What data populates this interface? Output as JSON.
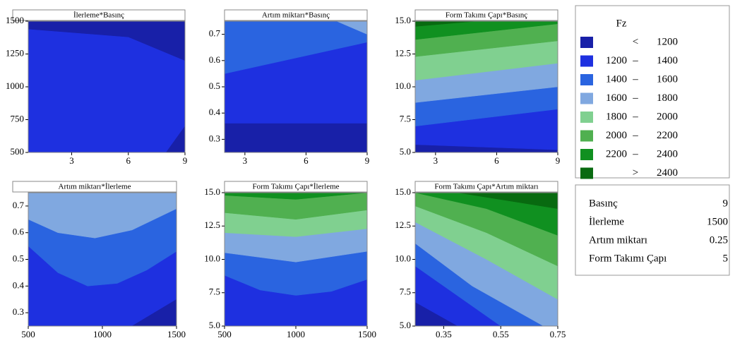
{
  "chart_data": {
    "type": "contour",
    "legend": {
      "title": "Fz",
      "less": "<",
      "dash": "–",
      "greater": ">",
      "breaks": [
        1200,
        1400,
        1600,
        1800,
        2000,
        2200,
        2400
      ],
      "colors": [
        "#1820a8",
        "#1e30e0",
        "#2a64e0",
        "#80a8e0",
        "#80d090",
        "#50b050",
        "#109020",
        "#086a10"
      ]
    },
    "hold": [
      {
        "name": "Basınç",
        "value": 9
      },
      {
        "name": "İlerleme",
        "value": 1500
      },
      {
        "name": "Artım miktarı",
        "value": 0.25
      },
      {
        "name": "Form Takımı Çapı",
        "value": 5
      }
    ],
    "panels": [
      {
        "title": "İlerleme*Basınç",
        "xlim": [
          0.7,
          9
        ],
        "ylim": [
          500,
          1500
        ],
        "xticks": [
          3,
          6,
          9
        ],
        "yticks": [
          500,
          750,
          1000,
          1250,
          1500
        ],
        "regions": [
          {
            "band": 1,
            "x": [
              0.7,
              9,
              9,
              0.7
            ],
            "y": [
              500,
              500,
              1500,
              1500
            ]
          },
          {
            "band": 0,
            "x": [
              0.7,
              9,
              9,
              6,
              0.7
            ],
            "y": [
              1500,
              1500,
              1200,
              1380,
              1440
            ]
          },
          {
            "band": 0,
            "x": [
              8,
              9,
              9
            ],
            "y": [
              500,
              500,
              700
            ]
          }
        ]
      },
      {
        "title": "Artım miktarı*Basınç",
        "xlim": [
          2,
          9
        ],
        "ylim": [
          0.25,
          0.75
        ],
        "xticks": [
          3,
          6,
          9
        ],
        "yticks": [
          0.3,
          0.4,
          0.5,
          0.6,
          0.7
        ],
        "regions": [
          {
            "band": 1,
            "x": [
              2,
              9,
              9,
              2
            ],
            "y": [
              0.25,
              0.25,
              0.75,
              0.75
            ]
          },
          {
            "band": 0,
            "x": [
              2,
              9,
              9,
              2
            ],
            "y": [
              0.25,
              0.25,
              0.36,
              0.36
            ]
          },
          {
            "band": 2,
            "x": [
              2,
              9,
              9,
              2
            ],
            "y": [
              0.75,
              0.75,
              0.67,
              0.55
            ]
          },
          {
            "band": 3,
            "x": [
              7.5,
              9,
              9
            ],
            "y": [
              0.75,
              0.75,
              0.7
            ]
          }
        ]
      },
      {
        "title": "Form Takımı Çapı*Basınç",
        "xlim": [
          2,
          9
        ],
        "ylim": [
          5,
          15
        ],
        "xticks": [
          3,
          6,
          9
        ],
        "yticks": [
          {
            "value": 5,
            "label": "5.0"
          },
          7.5,
          {
            "value": 10,
            "label": "10.0"
          },
          12.5,
          {
            "value": 15,
            "label": "15.0"
          }
        ],
        "regions": [
          {
            "band": 0,
            "x": [
              2,
              9,
              9,
              2
            ],
            "y": [
              5,
              5,
              15,
              15
            ]
          },
          {
            "band": 1,
            "x": [
              2,
              9,
              9,
              2
            ],
            "y": [
              5.6,
              5.2,
              15,
              15
            ]
          },
          {
            "band": 2,
            "x": [
              2,
              9,
              9,
              2
            ],
            "y": [
              7,
              8.3,
              15,
              15
            ]
          },
          {
            "band": 3,
            "x": [
              2,
              9,
              9,
              2
            ],
            "y": [
              8.8,
              10,
              15,
              15
            ]
          },
          {
            "band": 4,
            "x": [
              2,
              9,
              9,
              2
            ],
            "y": [
              10.5,
              11.8,
              15,
              15
            ]
          },
          {
            "band": 5,
            "x": [
              2,
              9,
              9,
              2
            ],
            "y": [
              12.3,
              13.5,
              15,
              15
            ]
          },
          {
            "band": 6,
            "x": [
              2,
              9,
              9,
              2
            ],
            "y": [
              13.6,
              14.8,
              15,
              15
            ]
          },
          {
            "band": 7,
            "x": [
              2,
              5,
              2
            ],
            "y": [
              14.6,
              15,
              15
            ]
          }
        ]
      },
      {
        "title": "Artım miktarı*İlerleme",
        "xlim": [
          500,
          1500
        ],
        "ylim": [
          0.25,
          0.75
        ],
        "xticks": [
          500,
          1000,
          1500
        ],
        "yticks": [
          0.3,
          0.4,
          0.5,
          0.6,
          0.7
        ],
        "regions": [
          {
            "band": 1,
            "x": [
              500,
              1500,
              1500,
              500
            ],
            "y": [
              0.25,
              0.25,
              0.75,
              0.75
            ]
          },
          {
            "band": 2,
            "x": [
              500,
              700,
              900,
              1100,
              1300,
              1500,
              1500,
              500
            ],
            "y": [
              0.55,
              0.45,
              0.4,
              0.41,
              0.46,
              0.53,
              0.75,
              0.75
            ]
          },
          {
            "band": 3,
            "x": [
              500,
              700,
              950,
              1200,
              1500,
              1500,
              500
            ],
            "y": [
              0.65,
              0.6,
              0.58,
              0.61,
              0.69,
              0.75,
              0.75
            ]
          },
          {
            "band": 0,
            "x": [
              1200,
              1500,
              1500
            ],
            "y": [
              0.25,
              0.25,
              0.35
            ]
          }
        ]
      },
      {
        "title": "Form Takımı Çapı*İlerleme",
        "xlim": [
          500,
          1500
        ],
        "ylim": [
          5,
          15
        ],
        "xticks": [
          500,
          1000,
          1500
        ],
        "yticks": [
          {
            "value": 5,
            "label": "5.0"
          },
          7.5,
          {
            "value": 10,
            "label": "10.0"
          },
          12.5,
          {
            "value": 15,
            "label": "15.0"
          }
        ],
        "regions": [
          {
            "band": 1,
            "x": [
              500,
              1500,
              1500,
              500
            ],
            "y": [
              5,
              5,
              15,
              15
            ]
          },
          {
            "band": 2,
            "x": [
              500,
              750,
              1000,
              1250,
              1500,
              1500,
              500
            ],
            "y": [
              8.8,
              7.7,
              7.3,
              7.6,
              8.5,
              15,
              15
            ]
          },
          {
            "band": 3,
            "x": [
              500,
              1000,
              1500,
              1500,
              500
            ],
            "y": [
              10.5,
              9.8,
              10.6,
              15,
              15
            ]
          },
          {
            "band": 4,
            "x": [
              500,
              1000,
              1500,
              1500,
              500
            ],
            "y": [
              12,
              11.7,
              12.3,
              15,
              15
            ]
          },
          {
            "band": 5,
            "x": [
              500,
              1000,
              1500,
              1500,
              500
            ],
            "y": [
              13.5,
              13,
              13.7,
              15,
              15
            ]
          },
          {
            "band": 6,
            "x": [
              500,
              1000,
              1500,
              1500,
              500
            ],
            "y": [
              14.8,
              14.5,
              15,
              15,
              15
            ]
          }
        ]
      },
      {
        "title": "Form Takımı Çapı*Artım miktarı",
        "xlim": [
          0.25,
          0.75
        ],
        "ylim": [
          5,
          15
        ],
        "xticks": [
          0.35,
          0.55,
          0.75
        ],
        "yticks": [
          {
            "value": 5,
            "label": "5.0"
          },
          7.5,
          {
            "value": 10,
            "label": "10.0"
          },
          12.5,
          {
            "value": 15,
            "label": "15.0"
          }
        ],
        "regions": [
          {
            "band": 0,
            "x": [
              0.25,
              0.75,
              0.75,
              0.25
            ],
            "y": [
              5,
              5,
              15,
              15
            ]
          },
          {
            "band": 1,
            "x": [
              0.25,
              0.4,
              0.75,
              0.75,
              0.25
            ],
            "y": [
              6.8,
              5,
              5,
              15,
              15
            ]
          },
          {
            "band": 2,
            "x": [
              0.25,
              0.55,
              0.75,
              0.75,
              0.25
            ],
            "y": [
              9.5,
              5,
              5,
              15,
              15
            ]
          },
          {
            "band": 3,
            "x": [
              0.25,
              0.45,
              0.7,
              0.75,
              0.75,
              0.25
            ],
            "y": [
              11.2,
              8,
              5,
              5,
              15,
              15
            ]
          },
          {
            "band": 4,
            "x": [
              0.25,
              0.5,
              0.75,
              0.75,
              0.25
            ],
            "y": [
              12.8,
              10,
              7,
              15,
              15
            ]
          },
          {
            "band": 5,
            "x": [
              0.25,
              0.5,
              0.75,
              0.75,
              0.25
            ],
            "y": [
              14,
              12,
              9.5,
              15,
              15
            ]
          },
          {
            "band": 6,
            "x": [
              0.25,
              0.5,
              0.75,
              0.75
            ],
            "y": [
              15,
              13.8,
              11.8,
              15
            ]
          },
          {
            "band": 7,
            "x": [
              0.4,
              0.75,
              0.75
            ],
            "y": [
              15,
              13.8,
              15
            ]
          }
        ]
      }
    ]
  }
}
